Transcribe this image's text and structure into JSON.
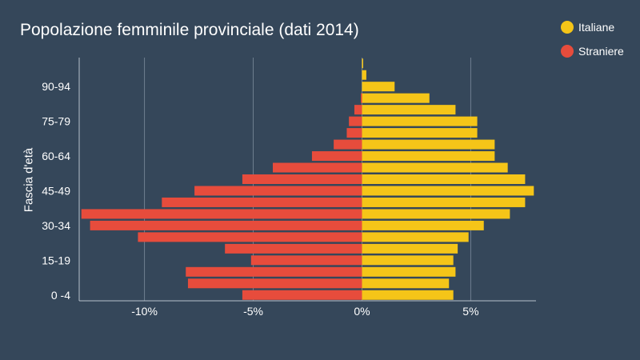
{
  "chart_data": {
    "type": "bar",
    "orientation": "horizontal",
    "title": "Popolazione femminile provinciale (dati 2014)",
    "xlabel": "",
    "ylabel": "Fascia d'età",
    "xlim": [
      -13,
      8
    ],
    "xticks": [
      {
        "value": -10,
        "label": "-10%"
      },
      {
        "value": -5,
        "label": "-5%"
      },
      {
        "value": 0,
        "label": "0%"
      },
      {
        "value": 5,
        "label": "5%"
      }
    ],
    "categories": [
      "0 -4",
      "5-9",
      "10-14",
      "15-19",
      "20-24",
      "25-29",
      "30-34",
      "35-39",
      "40-44",
      "45-49",
      "50-54",
      "55-59",
      "60-64",
      "65-69",
      "70-74",
      "75-79",
      "80-84",
      "85-89",
      "90-94",
      "95-99",
      "100+"
    ],
    "visible_category_labels": [
      "0 -4",
      "15-19",
      "30-34",
      "45-49",
      "60-64",
      "75-79",
      "90-94"
    ],
    "series": [
      {
        "name": "Italiane",
        "color": "#f5c518",
        "values": [
          4.2,
          4.0,
          4.3,
          4.2,
          4.4,
          4.9,
          5.6,
          6.8,
          7.5,
          7.9,
          7.5,
          6.7,
          6.1,
          6.1,
          5.3,
          5.3,
          4.3,
          3.1,
          1.5,
          0.2,
          0.05
        ]
      },
      {
        "name": "Straniere",
        "color": "#e74c3c",
        "values": [
          -5.5,
          -8.0,
          -8.1,
          -5.1,
          -6.3,
          -10.3,
          -12.5,
          -12.9,
          -9.2,
          -7.7,
          -5.5,
          -4.1,
          -2.3,
          -1.3,
          -0.7,
          -0.6,
          -0.35,
          -0.05,
          0,
          0,
          0
        ]
      }
    ]
  }
}
